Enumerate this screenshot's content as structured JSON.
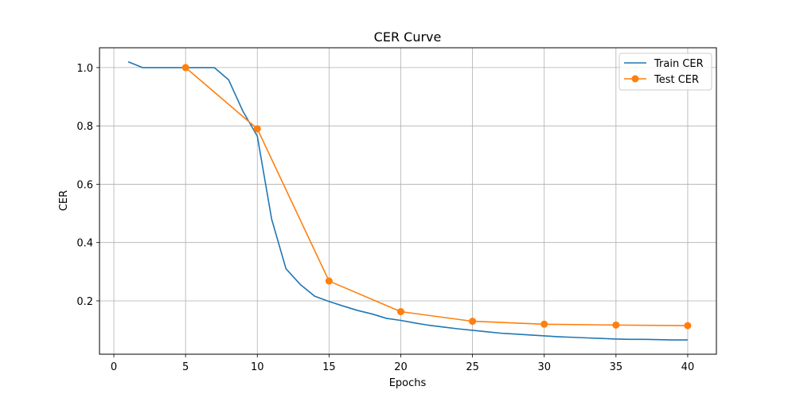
{
  "chart_data": {
    "type": "line",
    "title": "CER Curve",
    "xlabel": "Epochs",
    "ylabel": "CER",
    "xlim": [
      -1,
      42
    ],
    "ylim": [
      0.017,
      1.068
    ],
    "xticks": [
      0,
      5,
      10,
      15,
      20,
      25,
      30,
      35,
      40
    ],
    "yticks": [
      0.2,
      0.4,
      0.6,
      0.8,
      1.0
    ],
    "xtick_labels": [
      "0",
      "5",
      "10",
      "15",
      "20",
      "25",
      "30",
      "35",
      "40"
    ],
    "ytick_labels": [
      "0.2",
      "0.4",
      "0.6",
      "0.8",
      "1.0"
    ],
    "grid": true,
    "legend_position": "top-right",
    "series": [
      {
        "name": "Train CER",
        "color": "#1f77b4",
        "marker": "none",
        "x": [
          1,
          2,
          3,
          4,
          5,
          6,
          7,
          8,
          9,
          10,
          11,
          12,
          13,
          14,
          15,
          16,
          17,
          18,
          19,
          20,
          21,
          22,
          23,
          24,
          25,
          26,
          27,
          28,
          29,
          30,
          31,
          32,
          33,
          34,
          35,
          36,
          37,
          38,
          39,
          40
        ],
        "y": [
          1.02,
          1.0,
          1.0,
          1.0,
          1.0,
          1.0,
          1.0,
          0.958,
          0.85,
          0.765,
          0.48,
          0.31,
          0.256,
          0.216,
          0.198,
          0.182,
          0.167,
          0.155,
          0.14,
          0.133,
          0.124,
          0.116,
          0.11,
          0.104,
          0.099,
          0.094,
          0.089,
          0.086,
          0.083,
          0.08,
          0.077,
          0.075,
          0.073,
          0.071,
          0.069,
          0.068,
          0.068,
          0.067,
          0.066,
          0.066
        ]
      },
      {
        "name": "Test CER",
        "color": "#ff7f0e",
        "marker": "circle",
        "x": [
          5,
          10,
          15,
          20,
          25,
          30,
          35,
          40
        ],
        "y": [
          1.0,
          0.79,
          0.268,
          0.163,
          0.13,
          0.12,
          0.117,
          0.115
        ]
      }
    ]
  }
}
